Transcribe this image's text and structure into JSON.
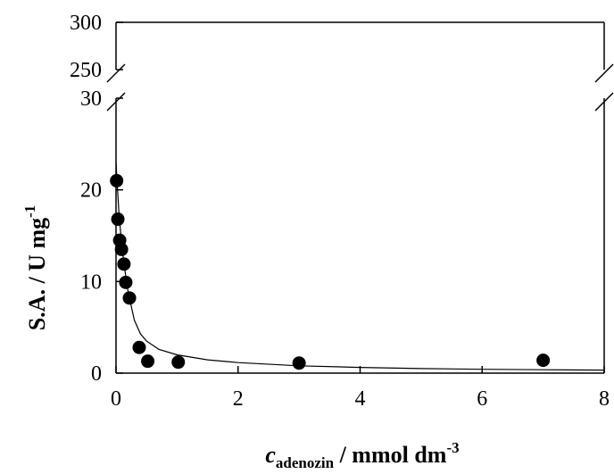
{
  "chart_data": {
    "type": "scatter",
    "title": "",
    "xlabel": {
      "italic": "c",
      "subscript": "adenozin",
      "rest": " / mmol dm",
      "superscript": "-3"
    },
    "ylabel": {
      "main": "S.A. / U mg",
      "superscript": "-1"
    },
    "xlim": [
      0,
      8
    ],
    "ylim_lower": [
      0,
      30
    ],
    "ylim_upper": [
      250,
      300
    ],
    "x_ticks": [
      "0",
      "2",
      "4",
      "6",
      "8"
    ],
    "y_ticks_lower": [
      "0",
      "10",
      "20",
      "30"
    ],
    "y_ticks_upper": [
      "250",
      "300"
    ],
    "grid": false,
    "points": {
      "x": [
        0.01,
        0.03,
        0.06,
        0.09,
        0.13,
        0.16,
        0.22,
        0.38,
        0.52,
        1.02,
        3.0,
        7.0
      ],
      "y": [
        21.0,
        16.8,
        14.5,
        13.5,
        11.9,
        9.9,
        8.2,
        2.8,
        1.3,
        1.2,
        1.1,
        1.4
      ]
    },
    "fit_curve": {
      "x": [
        0.0,
        0.02,
        0.05,
        0.1,
        0.15,
        0.2,
        0.3,
        0.4,
        0.5,
        0.7,
        1.0,
        1.5,
        2.0,
        3.0,
        4.0,
        5.0,
        6.0,
        7.0,
        8.0
      ],
      "y": [
        23.0,
        20.5,
        17.3,
        13.6,
        11.0,
        8.8,
        5.8,
        4.3,
        3.5,
        2.6,
        2.0,
        1.45,
        1.15,
        0.8,
        0.62,
        0.5,
        0.42,
        0.37,
        0.33
      ]
    }
  }
}
